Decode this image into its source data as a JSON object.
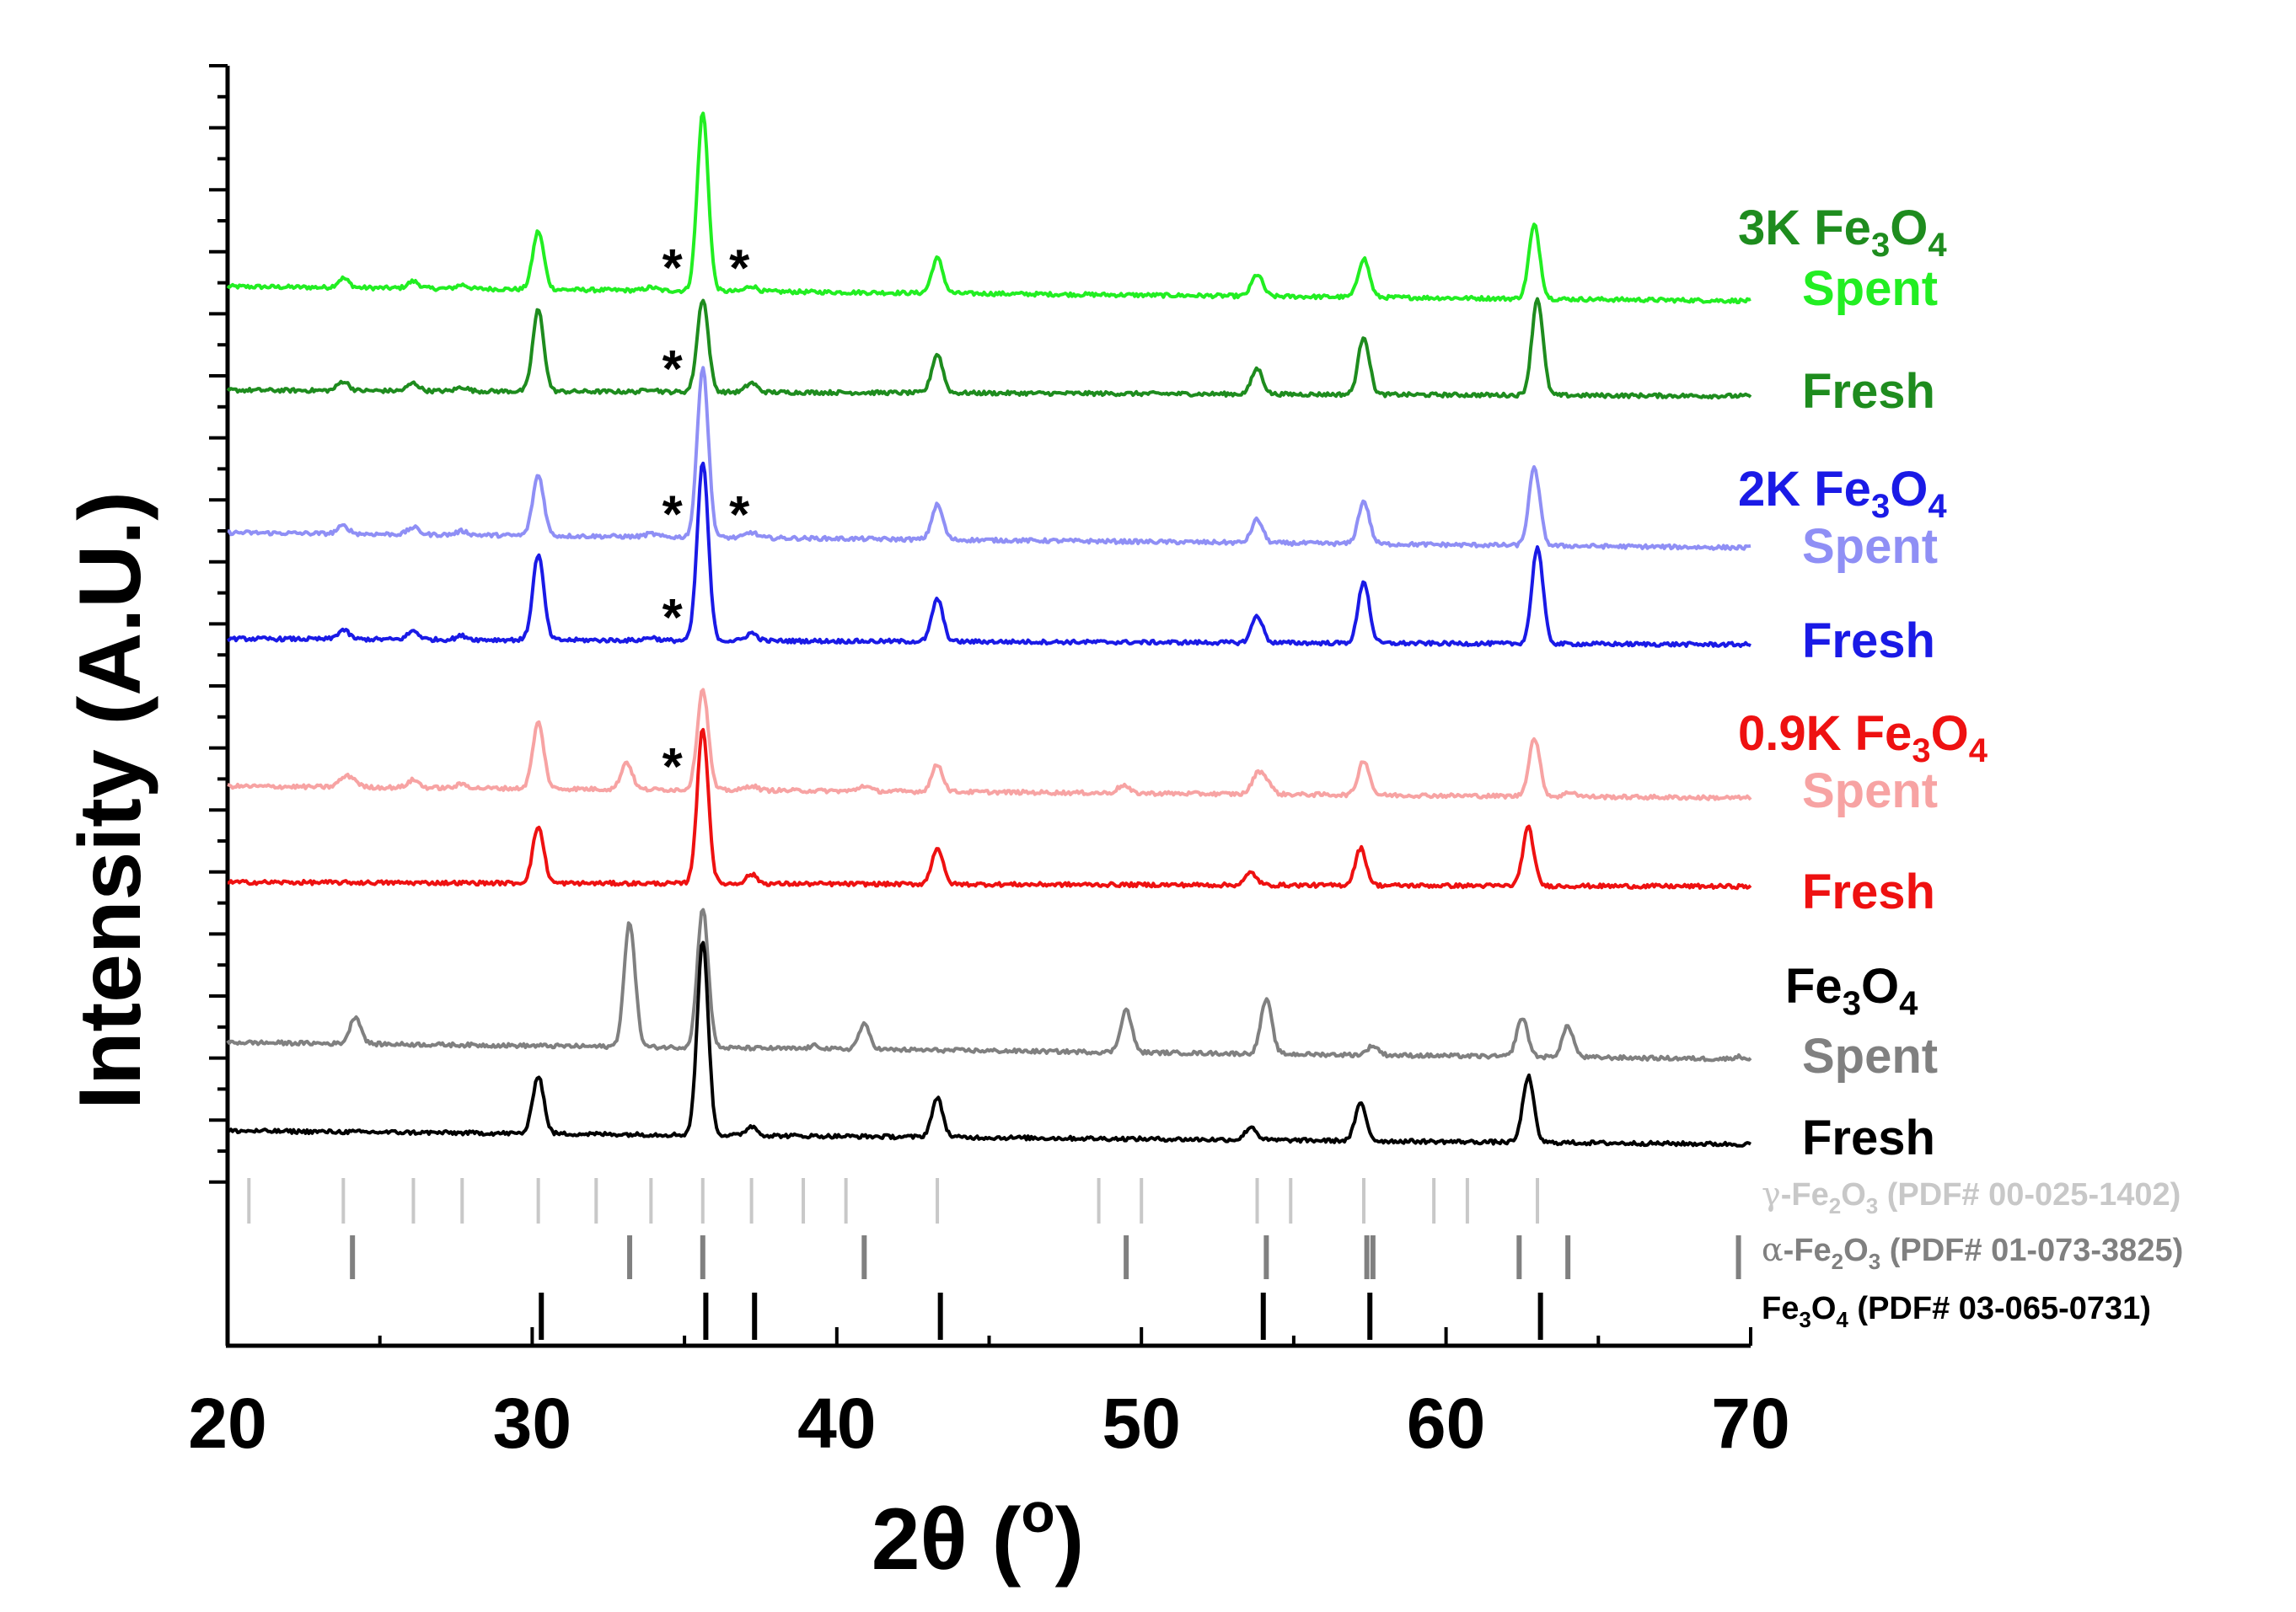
{
  "chart_data": {
    "type": "line",
    "title": "",
    "xlabel": "2θ (",
    "xlabel_sup": "o",
    "xlabel_end": ")",
    "ylabel": "Intensity (A.U.)",
    "xlim": [
      20,
      70
    ],
    "xticks": [
      "20",
      "30",
      "40",
      "50",
      "60",
      "70"
    ],
    "colors": {
      "green": "#1e8c1e",
      "green_light": "#22ee22",
      "blue": "#1a1ae6",
      "blue_light": "#8f8ff5",
      "red": "#ee1111",
      "red_light": "#f7a3a3",
      "black": "#000000",
      "gray": "#808080",
      "ref_light": "#c8c8c8"
    },
    "groups": [
      {
        "id": "g3k",
        "pre": "3K Fe",
        "s1": "3",
        "mid": "O",
        "s2": "4",
        "color": "#1e8c1e"
      },
      {
        "id": "g2k",
        "pre": "2K Fe",
        "s1": "3",
        "mid": "O",
        "s2": "4",
        "color": "#1a1ae6"
      },
      {
        "id": "g09k",
        "pre": "0.9K Fe",
        "s1": "3",
        "mid": "O",
        "s2": "4",
        "color": "#ee1111"
      },
      {
        "id": "gfe",
        "pre": "Fe",
        "s1": "3",
        "mid": "O",
        "s2": "4",
        "color": "#000000"
      }
    ],
    "series": [
      {
        "id": "s3k_spent",
        "name": "Spent",
        "group": "3K Fe3O4",
        "color": "#22ee22",
        "baseline": 0.0,
        "width": 4,
        "peaks": [
          [
            23.8,
            0.12
          ],
          [
            26.1,
            0.09
          ],
          [
            27.7,
            0.05
          ],
          [
            30.2,
            0.75
          ],
          [
            33.9,
            0.04
          ],
          [
            35.6,
            2.3
          ],
          [
            37.2,
            0.07
          ],
          [
            43.3,
            0.45
          ],
          [
            53.8,
            0.28
          ],
          [
            57.3,
            0.5
          ],
          [
            62.9,
            0.95
          ]
        ],
        "asterisks": [
          34.6,
          36.8
        ]
      },
      {
        "id": "s3k_fresh",
        "name": "Fresh",
        "group": "3K Fe3O4",
        "color": "#1e8c1e",
        "baseline": 0.0,
        "width": 4,
        "peaks": [
          [
            23.8,
            0.12
          ],
          [
            26.1,
            0.1
          ],
          [
            27.7,
            0.05
          ],
          [
            30.2,
            1.05
          ],
          [
            33.9,
            0.04
          ],
          [
            35.6,
            1.2
          ],
          [
            37.2,
            0.12
          ],
          [
            43.3,
            0.5
          ],
          [
            53.8,
            0.33
          ],
          [
            57.3,
            0.75
          ],
          [
            63.0,
            1.25
          ]
        ],
        "asterisks": [
          34.6
        ]
      },
      {
        "id": "s2k_spent",
        "name": "Spent",
        "group": "2K Fe3O4",
        "color": "#8f8ff5",
        "baseline": 0.0,
        "width": 4,
        "peaks": [
          [
            23.8,
            0.1
          ],
          [
            26.1,
            0.09
          ],
          [
            27.7,
            0.05
          ],
          [
            30.2,
            0.78
          ],
          [
            33.9,
            0.04
          ],
          [
            35.6,
            2.2
          ],
          [
            37.2,
            0.07
          ],
          [
            43.3,
            0.45
          ],
          [
            53.8,
            0.3
          ],
          [
            57.3,
            0.55
          ],
          [
            62.9,
            1.0
          ]
        ],
        "asterisks": [
          34.6,
          36.8
        ]
      },
      {
        "id": "s2k_fresh",
        "name": "Fresh",
        "group": "2K Fe3O4",
        "color": "#1a1ae6",
        "baseline": 0.0,
        "width": 4,
        "peaks": [
          [
            23.8,
            0.12
          ],
          [
            26.1,
            0.11
          ],
          [
            27.7,
            0.05
          ],
          [
            30.2,
            1.1
          ],
          [
            33.9,
            0.04
          ],
          [
            35.6,
            2.3
          ],
          [
            37.2,
            0.1
          ],
          [
            43.3,
            0.55
          ],
          [
            53.8,
            0.35
          ],
          [
            57.3,
            0.8
          ],
          [
            63.0,
            1.25
          ]
        ],
        "asterisks": [
          34.6
        ]
      },
      {
        "id": "s09k_spent",
        "name": "Spent",
        "group": "0.9K Fe3O4",
        "color": "#f7a3a3",
        "baseline": 0.0,
        "width": 4,
        "peaks": [
          [
            23.8,
            0.1
          ],
          [
            24.1,
            0.1
          ],
          [
            26.1,
            0.1
          ],
          [
            27.7,
            0.05
          ],
          [
            30.2,
            0.85
          ],
          [
            33.1,
            0.35
          ],
          [
            35.6,
            1.3
          ],
          [
            37.2,
            0.06
          ],
          [
            40.9,
            0.07
          ],
          [
            43.3,
            0.35
          ],
          [
            49.4,
            0.1
          ],
          [
            53.8,
            0.24
          ],
          [
            54.1,
            0.16
          ],
          [
            57.3,
            0.45
          ],
          [
            62.9,
            0.75
          ],
          [
            64.1,
            0.06
          ]
        ],
        "asterisks": [
          34.6
        ]
      },
      {
        "id": "s09k_fresh",
        "name": "Fresh",
        "group": "0.9K Fe3O4",
        "color": "#ee1111",
        "baseline": 0.0,
        "width": 4,
        "peaks": [
          [
            30.2,
            0.73
          ],
          [
            35.6,
            2.0
          ],
          [
            37.2,
            0.12
          ],
          [
            43.3,
            0.47
          ],
          [
            53.6,
            0.16
          ],
          [
            57.2,
            0.48
          ],
          [
            62.7,
            0.75
          ]
        ],
        "asterisks": []
      },
      {
        "id": "sfe_spent",
        "name": "Spent",
        "group": "Fe3O4",
        "color": "#808080",
        "baseline": 0.0,
        "width": 4,
        "peaks": [
          [
            24.2,
            0.35
          ],
          [
            33.2,
            1.6
          ],
          [
            35.6,
            1.8
          ],
          [
            39.3,
            0.04
          ],
          [
            40.9,
            0.32
          ],
          [
            49.5,
            0.55
          ],
          [
            54.1,
            0.7
          ],
          [
            57.6,
            0.12
          ],
          [
            62.5,
            0.5
          ],
          [
            64.0,
            0.4
          ],
          [
            69.6,
            0.03
          ]
        ],
        "asterisks": []
      },
      {
        "id": "sfe_fresh",
        "name": "Fresh",
        "group": "Fe3O4",
        "color": "#000000",
        "baseline": 0.0,
        "width": 4,
        "peaks": [
          [
            30.2,
            0.75
          ],
          [
            35.6,
            2.5
          ],
          [
            37.2,
            0.12
          ],
          [
            43.3,
            0.5
          ],
          [
            53.6,
            0.17
          ],
          [
            57.2,
            0.48
          ],
          [
            62.7,
            0.85
          ]
        ],
        "asterisks": []
      }
    ],
    "references": [
      {
        "id": "ref_gamma",
        "greek": "γ",
        "pre": "-Fe",
        "s1": "2",
        "mid": "O",
        "s2": "3",
        "text": " (PDF# 00-025-1402)",
        "color": "#c8c8c8",
        "positions": [
          20.7,
          23.8,
          26.1,
          27.7,
          30.2,
          32.1,
          33.9,
          35.6,
          37.2,
          38.9,
          40.3,
          43.3,
          48.6,
          50.0,
          53.8,
          54.9,
          57.3,
          59.6,
          60.7,
          63.0
        ]
      },
      {
        "id": "ref_alpha",
        "greek": "α",
        "pre": "-Fe",
        "s1": "2",
        "mid": "O",
        "s2": "3",
        "text": " (PDF# 01-073-3825)",
        "color": "#808080",
        "positions": [
          24.1,
          33.2,
          35.6,
          40.9,
          49.5,
          54.1,
          57.4,
          57.6,
          62.4,
          64.0,
          69.6
        ]
      },
      {
        "id": "ref_fe3o4",
        "greek": "",
        "pre": "Fe",
        "s1": "3",
        "mid": "O",
        "s2": "4",
        "text": " (PDF# 03-065-0731)",
        "color": "#000000",
        "positions": [
          30.3,
          35.7,
          37.3,
          43.4,
          54.0,
          57.5,
          63.1
        ]
      }
    ]
  }
}
